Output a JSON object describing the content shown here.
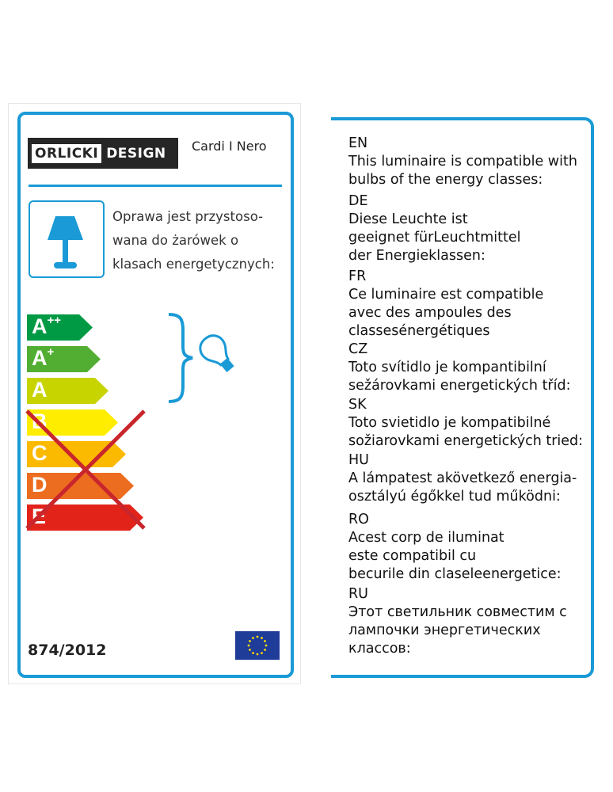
{
  "left_panel": {
    "brand": {
      "part1": "ORLICKI",
      "part2": "DESIGN"
    },
    "model": "Cardi I Nero",
    "pl_text": [
      "Oprawa jest przystoso-",
      "wana do żarówek o",
      "klasach energetycznych:"
    ],
    "energy_classes": [
      {
        "label": "A",
        "sup": "++",
        "color": "#009a44",
        "compatible": true
      },
      {
        "label": "A",
        "sup": "+",
        "color": "#52ae32",
        "compatible": true
      },
      {
        "label": "A",
        "sup": "",
        "color": "#c8d400",
        "compatible": true
      },
      {
        "label": "B",
        "sup": "",
        "color": "#ffed00",
        "compatible": false
      },
      {
        "label": "C",
        "sup": "",
        "color": "#fbb900",
        "compatible": false
      },
      {
        "label": "D",
        "sup": "",
        "color": "#ec6c20",
        "compatible": false
      },
      {
        "label": "E",
        "sup": "",
        "color": "#e2231a",
        "compatible": false
      }
    ],
    "regulation": "874/2012",
    "accent": "#1a9ad6",
    "cross_color": "#c8262c"
  },
  "right_panel": {
    "sections": [
      {
        "code": "EN",
        "lines": [
          "This luminaire is compatible with",
          "bulbs of the energy classes:"
        ]
      },
      {
        "code": "DE",
        "lines": [
          "Diese Leuchte ist",
          "geeignet fürLeuchtmittel",
          "der Energieklassen:"
        ]
      },
      {
        "code": "FR",
        "lines": [
          "Ce luminaire est compatible",
          "avec des ampoules des",
          "classesénergétiques"
        ]
      },
      {
        "code": "CZ",
        "lines": [
          "Toto svítidlo je kompantibilní",
          "sežárovkami energetických tříd:"
        ]
      },
      {
        "code": "SK",
        "lines": [
          "Toto svietidlo je kompatibilné",
          "sožiarovkami energetických tried:"
        ]
      },
      {
        "code": "HU",
        "lines": [
          "A lámpatest akövetkező energia-",
          "osztályú égőkkel tud működni:"
        ]
      },
      {
        "code": "RO",
        "lines": [
          "Acest corp de iluminat",
          "este compatibil cu",
          "becurile din claseleenergetice:"
        ]
      },
      {
        "code": "RU",
        "lines": [
          "Этот светильник совместим с",
          "лампочки энергетических",
          "классов:"
        ]
      }
    ]
  }
}
